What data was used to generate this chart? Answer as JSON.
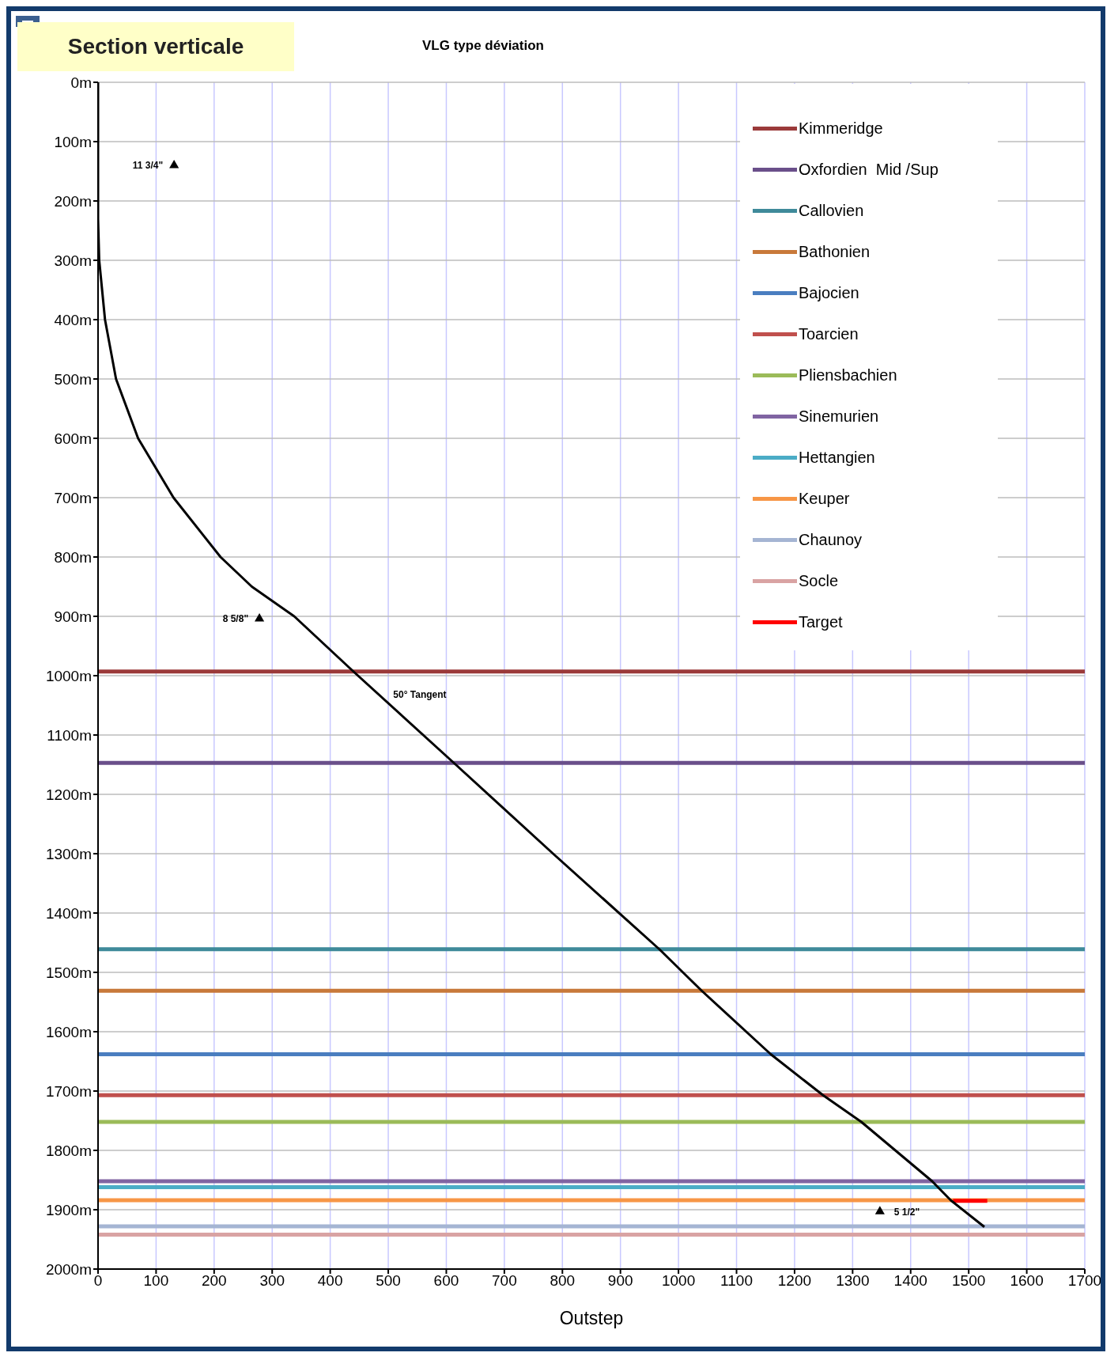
{
  "chart_data": {
    "type": "line",
    "title": "Section verticale",
    "subtitle": "VLG type déviation",
    "xlabel": "Outstep",
    "xlim": [
      0,
      1700
    ],
    "xticks": [
      0,
      100,
      200,
      300,
      400,
      500,
      600,
      700,
      800,
      900,
      1000,
      1100,
      1200,
      1300,
      1400,
      1500,
      1600,
      1700
    ],
    "ylim": [
      2000,
      0
    ],
    "yticks": [
      {
        "value": 0,
        "label": "0m"
      },
      {
        "value": 100,
        "label": "100m"
      },
      {
        "value": 200,
        "label": "200m"
      },
      {
        "value": 300,
        "label": "300m"
      },
      {
        "value": 400,
        "label": "400m"
      },
      {
        "value": 500,
        "label": "500m"
      },
      {
        "value": 600,
        "label": "600m"
      },
      {
        "value": 700,
        "label": "700m"
      },
      {
        "value": 800,
        "label": "800m"
      },
      {
        "value": 900,
        "label": "900m"
      },
      {
        "value": 1000,
        "label": "1000m"
      },
      {
        "value": 1100,
        "label": "1100m"
      },
      {
        "value": 1200,
        "label": "1200m"
      },
      {
        "value": 1300,
        "label": "1300m"
      },
      {
        "value": 1400,
        "label": "1400m"
      },
      {
        "value": 1500,
        "label": "1500m"
      },
      {
        "value": 1600,
        "label": "1600m"
      },
      {
        "value": 1700,
        "label": "1700m"
      },
      {
        "value": 1800,
        "label": "1800m"
      },
      {
        "value": 1900,
        "label": "1900m"
      },
      {
        "value": 2000,
        "label": "2000m"
      }
    ],
    "grid": true,
    "legend": "top right",
    "series": [
      {
        "color": "#000000",
        "x": [
          0,
          0,
          2,
          12,
          31,
          69,
          130,
          211,
          265,
          338,
          440,
          613,
          784,
          967,
          1040,
          1159,
          1249,
          1315,
          1437,
          1469,
          1527
        ],
        "values": [
          0,
          230,
          300,
          400,
          500,
          600,
          700,
          800,
          850,
          900,
          993,
          1147,
          1300,
          1461,
          1531,
          1638,
          1707,
          1752,
          1852,
          1884,
          1929
        ]
      },
      {
        "type": "scatter",
        "marker": "triangle",
        "color": "#000000",
        "x": [
          131,
          278,
          1347
        ],
        "values": [
          140,
          904,
          1903
        ]
      },
      {
        "name": "Kimmeridge",
        "color": "#9b3a3a",
        "x": [
          0,
          1700
        ],
        "values": [
          993,
          993
        ]
      },
      {
        "name": "Oxfordien  Mid /Sup",
        "color": "#6a4f8a",
        "x": [
          0,
          1700
        ],
        "values": [
          1147,
          1147
        ]
      },
      {
        "name": "Callovien",
        "color": "#3f8a9a",
        "x": [
          0,
          1700
        ],
        "values": [
          1461,
          1461
        ]
      },
      {
        "name": "Bathonien",
        "color": "#c8793a",
        "x": [
          0,
          1700
        ],
        "values": [
          1531,
          1531
        ]
      },
      {
        "name": "Bajocien",
        "color": "#4a7ec0",
        "x": [
          0,
          1700
        ],
        "values": [
          1638,
          1638
        ]
      },
      {
        "name": "Toarcien",
        "color": "#c0504d",
        "x": [
          0,
          1700
        ],
        "values": [
          1707,
          1707
        ]
      },
      {
        "name": "Pliensbachien",
        "color": "#9bbb59",
        "x": [
          0,
          1700
        ],
        "values": [
          1752,
          1752
        ]
      },
      {
        "name": "Sinemurien",
        "color": "#8064a2",
        "x": [
          0,
          1700
        ],
        "values": [
          1852,
          1852
        ]
      },
      {
        "name": "Hettangien",
        "color": "#4bacc6",
        "x": [
          0,
          1700
        ],
        "values": [
          1862,
          1862
        ]
      },
      {
        "name": "Keuper",
        "color": "#f79646",
        "x": [
          0,
          1700
        ],
        "values": [
          1884,
          1884
        ]
      },
      {
        "name": "Chaunoy",
        "color": "#a5b5d3",
        "x": [
          0,
          1700
        ],
        "values": [
          1928,
          1928
        ]
      },
      {
        "name": "Socle",
        "color": "#d9a3a3",
        "x": [
          0,
          1700
        ],
        "values": [
          1942,
          1942
        ]
      },
      {
        "name": "Target",
        "color": "#ff0000",
        "x": [
          1473,
          1532
        ],
        "values": [
          1885,
          1885
        ]
      }
    ],
    "annotations": [
      {
        "text": "11 3/4\"",
        "x": 131,
        "y": 140
      },
      {
        "text": "8 5/8\"",
        "x": 278,
        "y": 904
      },
      {
        "text": "50° Tangent",
        "x": 484,
        "y": 1032
      },
      {
        "text": "5 1/2\"",
        "x": 1347,
        "y": 1903
      }
    ]
  }
}
